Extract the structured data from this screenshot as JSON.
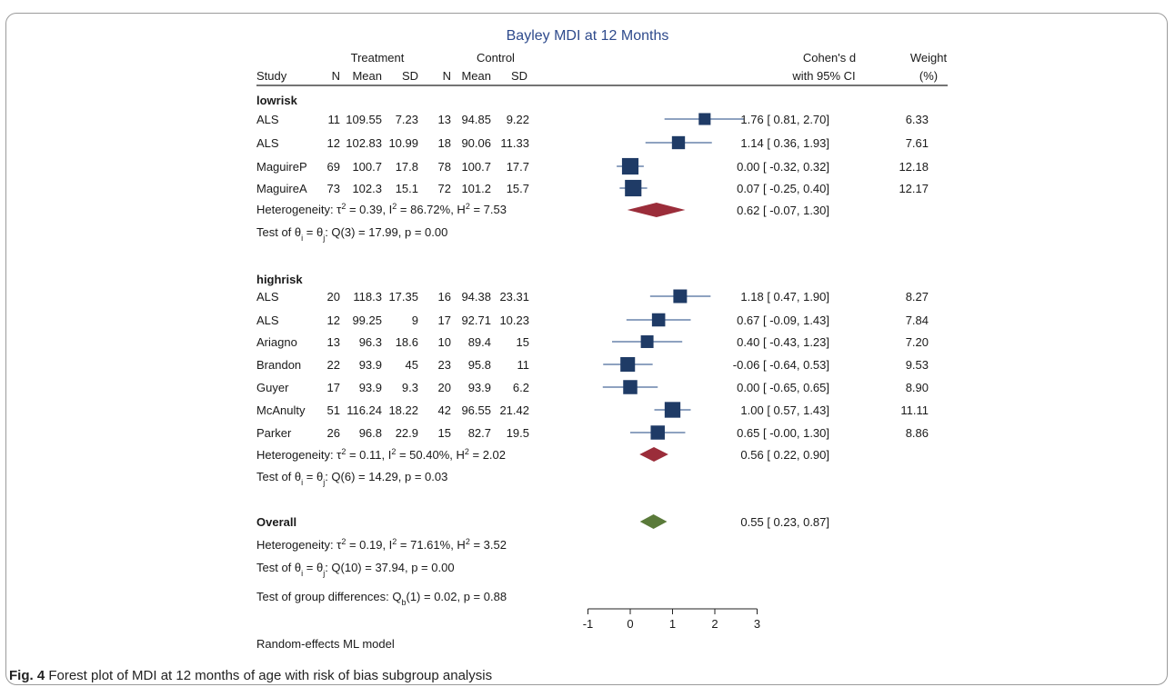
{
  "chart_data": {
    "type": "forest",
    "title": "Bayley MDI at 12 Months",
    "headers": {
      "group_treatment": "Treatment",
      "group_control": "Control",
      "study": "Study",
      "n": "N",
      "mean": "Mean",
      "sd": "SD",
      "effect_line1": "Cohen's d",
      "effect_line2": "with 95% CI",
      "weight_line1": "Weight",
      "weight_line2": "(%)"
    },
    "x_ticks": [
      -1,
      0,
      1,
      2,
      3
    ],
    "xlim": [
      -1,
      3
    ],
    "colors": {
      "title": "#2e4a8c",
      "square": "#1f3b66",
      "ci": "#4a6a9a",
      "subgroup_diamond": "#9b2d3a",
      "overall_diamond": "#5a7a3a",
      "rule": "#222222"
    },
    "subgroups": [
      {
        "label": "lowrisk",
        "studies": [
          {
            "name": "ALS",
            "t_n": "11",
            "t_mean": "109.55",
            "t_sd": "7.23",
            "c_n": "13",
            "c_mean": "94.85",
            "c_sd": "9.22",
            "d": 1.76,
            "lo": 0.81,
            "hi": 2.7,
            "ci_text": "1.76 [   0.81,  2.70]",
            "weight": 6.33,
            "weight_text": "6.33"
          },
          {
            "name": "ALS",
            "t_n": "12",
            "t_mean": "102.83",
            "t_sd": "10.99",
            "c_n": "18",
            "c_mean": "90.06",
            "c_sd": "11.33",
            "d": 1.14,
            "lo": 0.36,
            "hi": 1.93,
            "ci_text": "1.14 [   0.36,  1.93]",
            "weight": 7.61,
            "weight_text": "7.61"
          },
          {
            "name": "MaguireP",
            "t_n": "69",
            "t_mean": "100.7",
            "t_sd": "17.8",
            "c_n": "78",
            "c_mean": "100.7",
            "c_sd": "17.7",
            "d": 0.0,
            "lo": -0.32,
            "hi": 0.32,
            "ci_text": "0.00 [  -0.32,  0.32]",
            "weight": 12.18,
            "weight_text": "12.18"
          },
          {
            "name": "MaguireA",
            "t_n": "73",
            "t_mean": "102.3",
            "t_sd": "15.1",
            "c_n": "72",
            "c_mean": "101.2",
            "c_sd": "15.7",
            "d": 0.07,
            "lo": -0.25,
            "hi": 0.4,
            "ci_text": "0.07 [  -0.25,  0.40]",
            "weight": 12.17,
            "weight_text": "12.17"
          }
        ],
        "heterogeneity": {
          "tau2": "0.39",
          "i2": "86.72%",
          "h2": "7.53"
        },
        "pooled": {
          "d": 0.62,
          "lo": -0.07,
          "hi": 1.3,
          "ci_text": "0.62 [  -0.07,  1.30]"
        },
        "test": {
          "df": "3",
          "q": "17.99",
          "p": "0.00"
        }
      },
      {
        "label": "highrisk",
        "studies": [
          {
            "name": "ALS",
            "t_n": "20",
            "t_mean": "118.3",
            "t_sd": "17.35",
            "c_n": "16",
            "c_mean": "94.38",
            "c_sd": "23.31",
            "d": 1.18,
            "lo": 0.47,
            "hi": 1.9,
            "ci_text": "1.18 [   0.47,  1.90]",
            "weight": 8.27,
            "weight_text": "8.27"
          },
          {
            "name": "ALS",
            "t_n": "12",
            "t_mean": "99.25",
            "t_sd": "9",
            "c_n": "17",
            "c_mean": "92.71",
            "c_sd": "10.23",
            "d": 0.67,
            "lo": -0.09,
            "hi": 1.43,
            "ci_text": "0.67 [  -0.09,  1.43]",
            "weight": 7.84,
            "weight_text": "7.84"
          },
          {
            "name": "Ariagno",
            "t_n": "13",
            "t_mean": "96.3",
            "t_sd": "18.6",
            "c_n": "10",
            "c_mean": "89.4",
            "c_sd": "15",
            "d": 0.4,
            "lo": -0.43,
            "hi": 1.23,
            "ci_text": "0.40 [  -0.43,  1.23]",
            "weight": 7.2,
            "weight_text": "7.20"
          },
          {
            "name": "Brandon",
            "t_n": "22",
            "t_mean": "93.9",
            "t_sd": "45",
            "c_n": "23",
            "c_mean": "95.8",
            "c_sd": "11",
            "d": -0.06,
            "lo": -0.64,
            "hi": 0.53,
            "ci_text": "-0.06 [  -0.64,  0.53]",
            "weight": 9.53,
            "weight_text": "9.53"
          },
          {
            "name": "Guyer",
            "t_n": "17",
            "t_mean": "93.9",
            "t_sd": "9.3",
            "c_n": "20",
            "c_mean": "93.9",
            "c_sd": "6.2",
            "d": 0.0,
            "lo": -0.65,
            "hi": 0.65,
            "ci_text": "0.00 [  -0.65,  0.65]",
            "weight": 8.9,
            "weight_text": "8.90"
          },
          {
            "name": "McAnulty",
            "t_n": "51",
            "t_mean": "116.24",
            "t_sd": "18.22",
            "c_n": "42",
            "c_mean": "96.55",
            "c_sd": "21.42",
            "d": 1.0,
            "lo": 0.57,
            "hi": 1.43,
            "ci_text": "1.00 [   0.57,  1.43]",
            "weight": 11.11,
            "weight_text": "11.11"
          },
          {
            "name": "Parker",
            "t_n": "26",
            "t_mean": "96.8",
            "t_sd": "22.9",
            "c_n": "15",
            "c_mean": "82.7",
            "c_sd": "19.5",
            "d": 0.65,
            "lo": -0.0,
            "hi": 1.3,
            "ci_text": "0.65 [  -0.00,  1.30]",
            "weight": 8.86,
            "weight_text": "8.86"
          }
        ],
        "heterogeneity": {
          "tau2": "0.11",
          "i2": "50.40%",
          "h2": "2.02"
        },
        "pooled": {
          "d": 0.56,
          "lo": 0.22,
          "hi": 0.9,
          "ci_text": "0.56 [   0.22,  0.90]"
        },
        "test": {
          "df": "6",
          "q": "14.29",
          "p": "0.03"
        }
      }
    ],
    "overall": {
      "label": "Overall",
      "d": 0.55,
      "lo": 0.23,
      "hi": 0.87,
      "ci_text": "0.55 [   0.23,  0.87]",
      "heterogeneity": {
        "tau2": "0.19",
        "i2": "71.61%",
        "h2": "3.52"
      },
      "test": {
        "df": "10",
        "q": "37.94",
        "p": "0.00"
      }
    },
    "group_difference": {
      "df": "1",
      "q": "0.02",
      "p": "0.88"
    },
    "model_note": "Random-effects ML model"
  },
  "caption": {
    "label": "Fig. 4",
    "text": "Forest plot of MDI at 12 months of age with risk of bias subgroup analysis"
  }
}
